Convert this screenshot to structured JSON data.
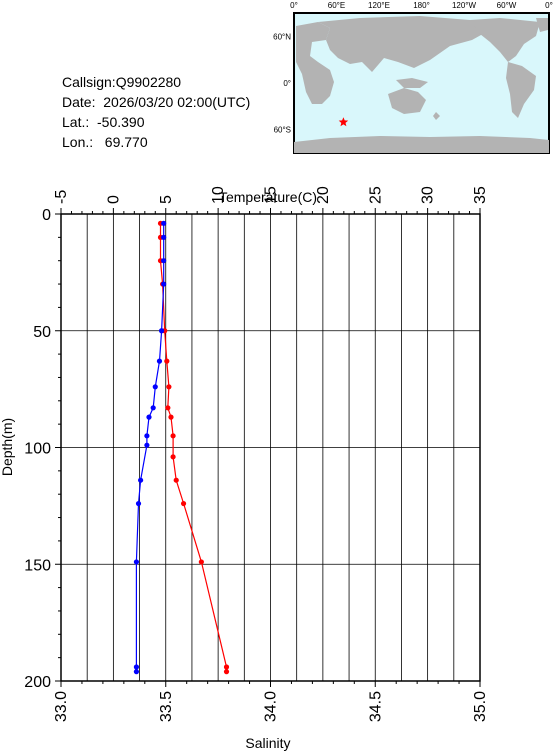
{
  "header": {
    "callsign": "Callsign:Q9902280",
    "date": "Date:  2026/03/20 02:00(UTC)",
    "lat": "Lat.:  -50.390",
    "lon": "Lon.:   69.770"
  },
  "map": {
    "lon_labels": [
      "0°",
      "60°E",
      "120°E",
      "180°",
      "120°W",
      "60°W",
      "0°"
    ],
    "lat_labels": [
      "60°N",
      "0°",
      "60°S"
    ],
    "ocean_color": "#d9f7fb",
    "land_color": "#b3b3b3",
    "marker": {
      "lon": 69.77,
      "lat": -50.39,
      "color": "#ff0000",
      "icon": "star-icon"
    }
  },
  "chart_data": {
    "type": "line",
    "top_axis_label": "Temperature(C)",
    "bottom_axis_label": "Salinity",
    "ylabel": "Depth(m)",
    "temperature_range": [
      -5,
      35
    ],
    "temperature_ticks": [
      "-5",
      "0",
      "5",
      "10",
      "15",
      "20",
      "25",
      "30",
      "35"
    ],
    "salinity_range": [
      33.0,
      35.0
    ],
    "salinity_ticks": [
      "33.0",
      "33.5",
      "34.0",
      "34.5",
      "35.0"
    ],
    "depth_range": [
      0,
      200
    ],
    "depth_ticks": [
      "0",
      "50",
      "100",
      "150",
      "200"
    ],
    "grid": true,
    "series": [
      {
        "quantity": "temperature",
        "color": "#ff0000",
        "points": [
          {
            "depth": 4,
            "value": 4.5
          },
          {
            "depth": 10,
            "value": 4.5
          },
          {
            "depth": 20,
            "value": 4.5
          },
          {
            "depth": 30,
            "value": 4.7
          },
          {
            "depth": 50,
            "value": 4.9
          },
          {
            "depth": 63,
            "value": 5.1
          },
          {
            "depth": 74,
            "value": 5.3
          },
          {
            "depth": 83,
            "value": 5.2
          },
          {
            "depth": 87,
            "value": 5.5
          },
          {
            "depth": 95,
            "value": 5.7
          },
          {
            "depth": 104,
            "value": 5.7
          },
          {
            "depth": 114,
            "value": 6.0
          },
          {
            "depth": 124,
            "value": 6.7
          },
          {
            "depth": 149,
            "value": 8.4
          },
          {
            "depth": 194,
            "value": 10.8
          },
          {
            "depth": 196,
            "value": 10.8
          }
        ]
      },
      {
        "quantity": "salinity",
        "color": "#0000ff",
        "points": [
          {
            "depth": 4,
            "value": 33.49
          },
          {
            "depth": 10,
            "value": 33.49
          },
          {
            "depth": 20,
            "value": 33.49
          },
          {
            "depth": 30,
            "value": 33.49
          },
          {
            "depth": 50,
            "value": 33.48
          },
          {
            "depth": 63,
            "value": 33.47
          },
          {
            "depth": 74,
            "value": 33.45
          },
          {
            "depth": 83,
            "value": 33.44
          },
          {
            "depth": 87,
            "value": 33.42
          },
          {
            "depth": 95,
            "value": 33.41
          },
          {
            "depth": 99,
            "value": 33.41
          },
          {
            "depth": 114,
            "value": 33.38
          },
          {
            "depth": 124,
            "value": 33.37
          },
          {
            "depth": 149,
            "value": 33.36
          },
          {
            "depth": 194,
            "value": 33.36
          },
          {
            "depth": 196,
            "value": 33.36
          }
        ]
      }
    ]
  }
}
